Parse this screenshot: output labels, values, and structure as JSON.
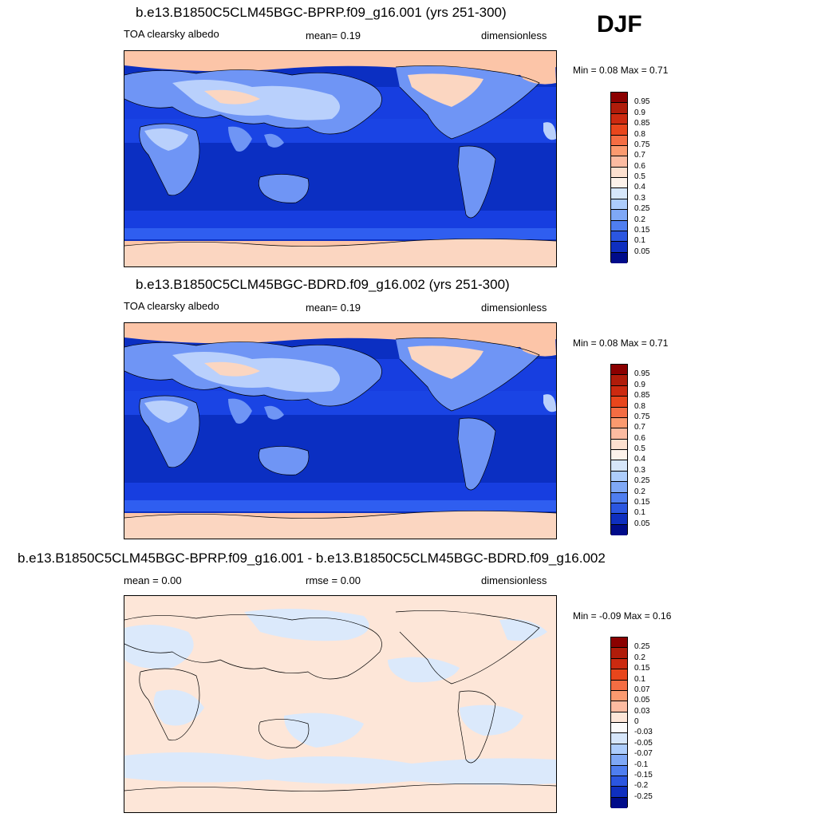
{
  "season": "DJF",
  "panels": [
    {
      "title": "b.e13.B1850C5CLM45BGC-BPRP.f09_g16.001 (yrs 251-300)",
      "left": "TOA clearsky albedo",
      "mid": "mean=   0.19",
      "right": "dimensionless",
      "minmax": "Min =   0.08 Max =   0.71",
      "colorbar": {
        "labels": [
          "0.95",
          "0.9",
          "0.85",
          "0.8",
          "0.75",
          "0.7",
          "0.6",
          "0.5",
          "0.4",
          "0.3",
          "0.25",
          "0.2",
          "0.15",
          "0.1",
          "0.05"
        ],
        "colors": [
          "#8b0000",
          "#b01c0a",
          "#cc2a10",
          "#e8461c",
          "#f46d43",
          "#fb9a6f",
          "#fcbba1",
          "#fde0cf",
          "#fdf2ea",
          "#d6e6fa",
          "#adcdfc",
          "#7fa8f6",
          "#4f7ef0",
          "#2b56e0",
          "#0f2fbf",
          "#000c8a"
        ]
      }
    },
    {
      "title": "b.e13.B1850C5CLM45BGC-BDRD.f09_g16.002 (yrs 251-300)",
      "left": "TOA clearsky albedo",
      "mid": "mean=   0.19",
      "right": "dimensionless",
      "minmax": "Min =   0.08 Max =   0.71",
      "colorbar": {
        "labels": [
          "0.95",
          "0.9",
          "0.85",
          "0.8",
          "0.75",
          "0.7",
          "0.6",
          "0.5",
          "0.4",
          "0.3",
          "0.25",
          "0.2",
          "0.15",
          "0.1",
          "0.05"
        ],
        "colors": [
          "#8b0000",
          "#b01c0a",
          "#cc2a10",
          "#e8461c",
          "#f46d43",
          "#fb9a6f",
          "#fcbba1",
          "#fde0cf",
          "#fdf2ea",
          "#d6e6fa",
          "#adcdfc",
          "#7fa8f6",
          "#4f7ef0",
          "#2b56e0",
          "#0f2fbf",
          "#000c8a"
        ]
      }
    },
    {
      "title": "b.e13.B1850C5CLM45BGC-BPRP.f09_g16.001 - b.e13.B1850C5CLM45BGC-BDRD.f09_g16.002",
      "left": "mean =   0.00",
      "mid": "rmse =   0.00",
      "right": "dimensionless",
      "minmax": "Min =  -0.09 Max =   0.16",
      "colorbar": {
        "labels": [
          "0.25",
          "0.2",
          "0.15",
          "0.1",
          "0.07",
          "0.05",
          "0.03",
          "0",
          "-0.03",
          "-0.05",
          "-0.07",
          "-0.1",
          "-0.15",
          "-0.2",
          "-0.25"
        ],
        "colors": [
          "#8b0000",
          "#b01c0a",
          "#cc2a10",
          "#e8461c",
          "#f46d43",
          "#fb9a6f",
          "#fcbba1",
          "#fde6d8",
          "#fbfbfb",
          "#d6e6fa",
          "#adcdfc",
          "#7fa8f6",
          "#4f7ef0",
          "#2b56e0",
          "#0f2fbf",
          "#000c8a"
        ]
      }
    }
  ],
  "map_colors": {
    "pole": "#fcc5a8",
    "pole_dark": "#fbad8c",
    "ocean_deep": "#0b2fc2",
    "ocean_mid": "#173ee0",
    "ocean_light": "#2f5ef0",
    "land": "#6f95f5",
    "land_light": "#b9d0fc",
    "snow": "#fbd6c1",
    "diff_pos": "#fde6d8",
    "diff_neg": "#dbe9fb"
  }
}
